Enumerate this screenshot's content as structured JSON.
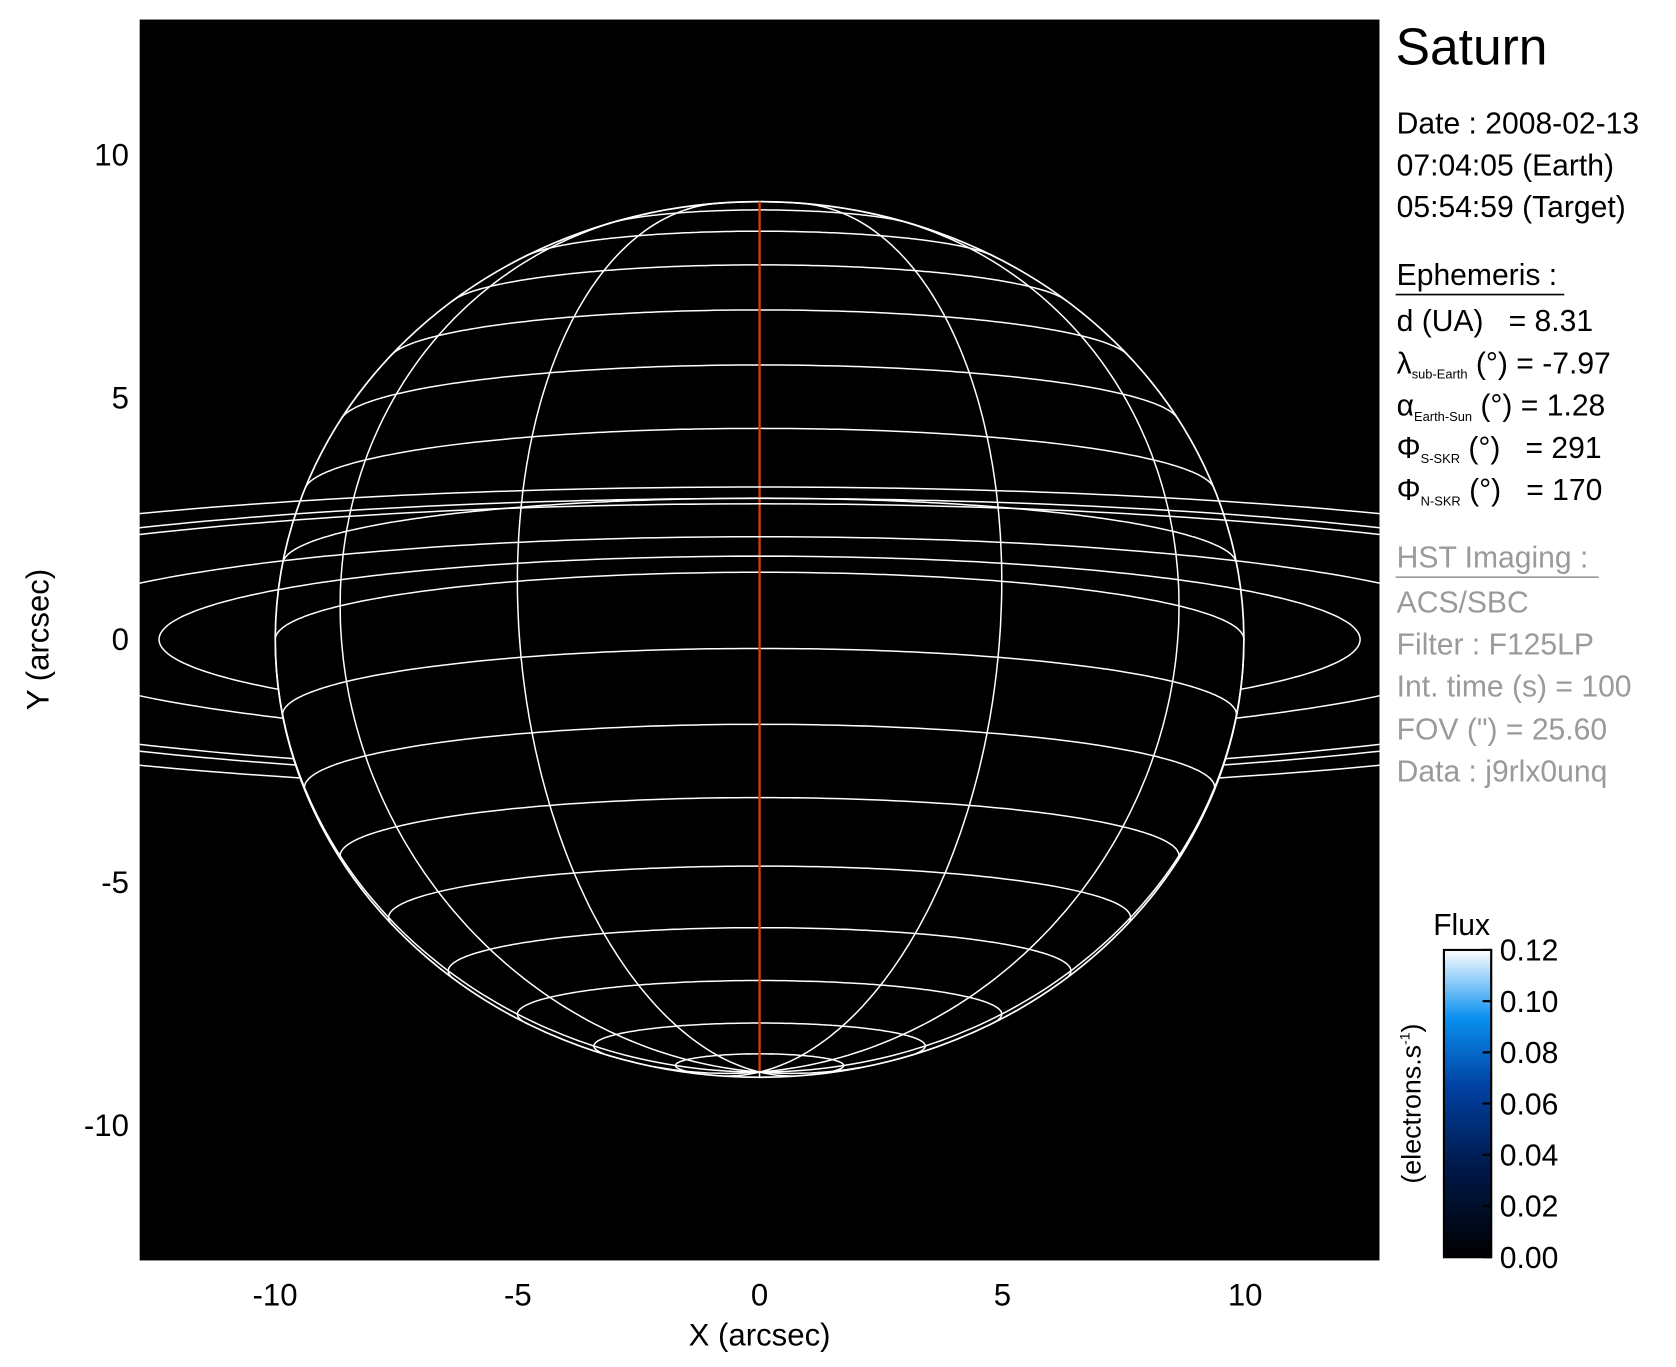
{
  "chart_data": {
    "type": "image-projection",
    "title": "Saturn",
    "xlabel": "X (arcsec)",
    "ylabel": "Y (arcsec)",
    "xlim": [
      -12.8,
      12.8
    ],
    "ylim": [
      -12.8,
      12.8
    ],
    "xticks": [
      "-10",
      "-5",
      "0",
      "5",
      "10"
    ],
    "yticks": [
      "10",
      "5",
      "0",
      "-5",
      "-10"
    ],
    "background": "#000000",
    "grid_color": "#ffffff",
    "central_meridian_color": "#d23c10",
    "planet": {
      "equatorial_radius_arcsec": 10.0,
      "polar_radius_arcsec": 9.02,
      "sub_earth_latitude_deg": -7.97,
      "latitude_step_deg": 10,
      "longitude_step_deg": 30
    },
    "ring_radii_arcsec": [
      12.4,
      15.3,
      20.2,
      21.0,
      22.7
    ],
    "colorbar": {
      "title": "Flux",
      "label": "(electrons.s",
      "label_sup": "-1",
      "label_close": ")",
      "range": [
        0.0,
        0.12
      ],
      "ticks": [
        "0.12",
        "0.10",
        "0.08",
        "0.06",
        "0.04",
        "0.02",
        "0.00"
      ],
      "colors": [
        "#000000",
        "#001a4d",
        "#0040a0",
        "#0a90f0",
        "#ffffff"
      ]
    }
  },
  "info": {
    "title": "Saturn",
    "date_line": "Date : 2008-02-13",
    "earth_time": "07:04:05 (Earth)",
    "target_time": "05:54:59 (Target)",
    "ephemeris_heading": "Ephemeris :",
    "ephemeris": [
      {
        "symbol": "d (UA)",
        "sub": "",
        "unit": "",
        "value": "   = 8.31"
      },
      {
        "symbol": "λ",
        "sub": "sub-Earth",
        "unit": " (°)",
        "value": " = -7.97"
      },
      {
        "symbol": "α",
        "sub": "Earth-Sun",
        "unit": " (°)",
        "value": " = 1.28"
      },
      {
        "symbol": "Φ",
        "sub": "S-SKR",
        "unit": " (°)",
        "value": "   = 291"
      },
      {
        "symbol": "Φ",
        "sub": "N-SKR",
        "unit": " (°)",
        "value": "   = 170"
      }
    ],
    "hst_heading": "HST Imaging :",
    "hst": [
      "ACS/SBC",
      "Filter : F125LP",
      "Int. time (s) = 100",
      "FOV (\") = 25.60",
      "Data : j9rlx0unq"
    ]
  }
}
